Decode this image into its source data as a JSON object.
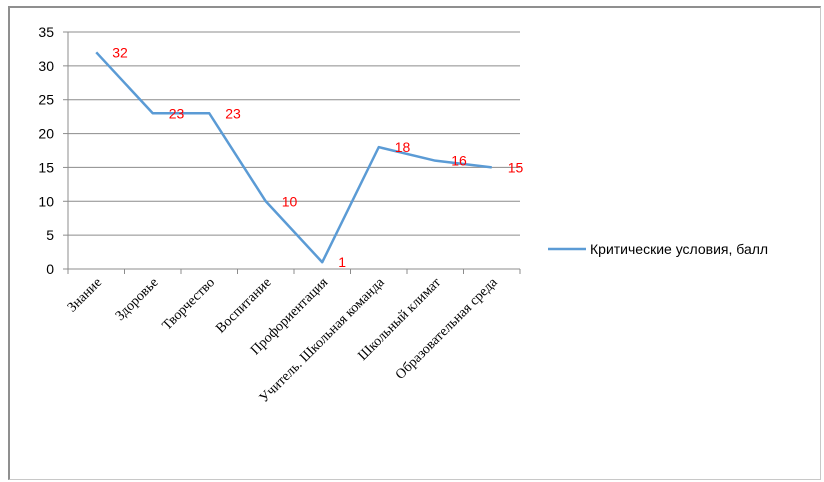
{
  "chart_data": {
    "type": "line",
    "categories": [
      "Знание",
      "Здоровье",
      "Творчество",
      "Воспитание",
      "Профориентация",
      "Учитель. Школьная команда",
      "Школьный климат",
      "Образовательная среда"
    ],
    "series": [
      {
        "name": "Критические условия, балл",
        "values": [
          32,
          23,
          23,
          10,
          1,
          18,
          16,
          15
        ],
        "color": "#5b9bd5"
      }
    ],
    "data_labels": [
      "32",
      "23",
      "23",
      "10",
      "1",
      "18",
      "16",
      "15"
    ],
    "y_ticks": [
      "0",
      "5",
      "10",
      "15",
      "20",
      "25",
      "30",
      "35"
    ],
    "ylim": [
      0,
      35
    ],
    "grid": true,
    "legend_position": "right",
    "label_color": "#ff0000"
  }
}
